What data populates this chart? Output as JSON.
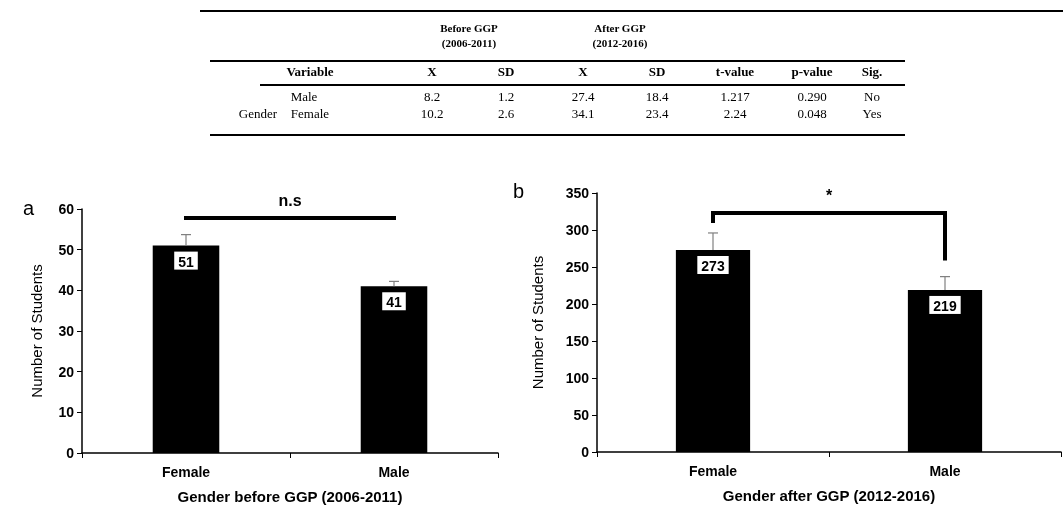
{
  "chart_data": [
    {
      "type": "other",
      "annotations": [
        "Before GGP (2006-2011)",
        "After GGP (2012-2016)",
        "Variable",
        "X",
        "SD",
        "X",
        "SD",
        "t-value",
        "p-value",
        "Sig.",
        "Male",
        "8.2",
        "1.2",
        "27.4",
        "18.4",
        "1.217",
        "0.290",
        "No",
        "Gender",
        "Female",
        "10.2",
        "2.6",
        "34.1",
        "23.4",
        "2.24",
        "0.048",
        "Yes"
      ]
    },
    {
      "type": "bar",
      "title": "a",
      "xlabel": "Gender before GGP (2006-2011)",
      "ylabel": "Number of Students",
      "categories": [
        "Female",
        "Male"
      ],
      "values": [
        51,
        41
      ],
      "color": "#000000",
      "errors": [
        [
          51,
          53.7
        ],
        [
          41,
          42.2
        ]
      ],
      "ylim": [
        0,
        60
      ],
      "yticks": [
        0,
        10,
        20,
        30,
        40,
        50,
        60
      ],
      "data_labels": true,
      "annotations": [
        "n.s"
      ]
    },
    {
      "type": "bar",
      "title": "b",
      "xlabel": "Gender after GGP (2012-2016)",
      "ylabel": "Number of Students",
      "categories": [
        "Female",
        "Male"
      ],
      "values": [
        273,
        219
      ],
      "color": "#000000",
      "errors": [
        [
          273,
          296
        ],
        [
          219,
          237
        ]
      ],
      "ylim": [
        0,
        350
      ],
      "yticks": [
        0,
        50,
        100,
        150,
        200,
        250,
        300,
        350
      ],
      "data_labels": true,
      "annotations": [
        "*"
      ]
    }
  ]
}
